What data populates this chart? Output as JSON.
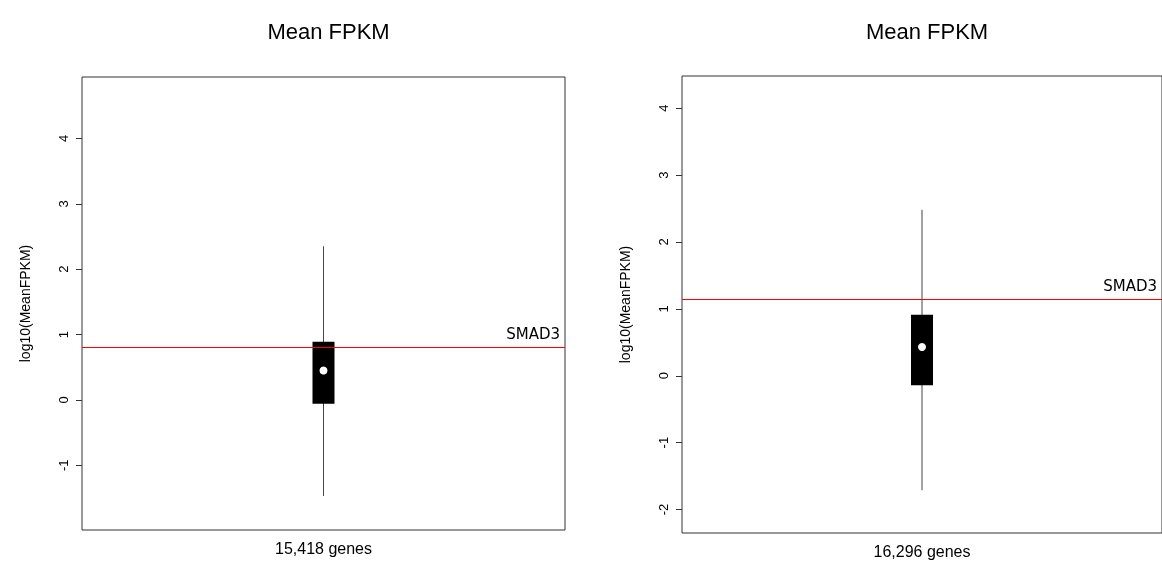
{
  "chart_data": [
    {
      "type": "box",
      "title": "Mean FPKM",
      "ylabel": "log10(MeanFPKM)",
      "categories": [
        "15,418 genes"
      ],
      "boxes": [
        {
          "low": -1.47,
          "q1": -0.06,
          "median": 0.45,
          "q3": 0.89,
          "high": 2.35
        }
      ],
      "color": "#000000",
      "ylim": [
        -1.99,
        4.94
      ],
      "yticks": [
        -1,
        0,
        1,
        2,
        3,
        4
      ],
      "grid": false,
      "ref_lines": [
        {
          "axis": "y",
          "value": 0.81,
          "label": "SMAD3",
          "color": "#ff0000"
        }
      ]
    },
    {
      "type": "box",
      "title": "Mean FPKM",
      "ylabel": "log10(MeanFPKM)",
      "categories": [
        "16,296 genes"
      ],
      "boxes": [
        {
          "low": -1.71,
          "q1": -0.14,
          "median": 0.43,
          "q3": 0.91,
          "high": 2.48
        }
      ],
      "color": "#000000",
      "ylim": [
        -2.35,
        4.48
      ],
      "yticks": [
        -2,
        -1,
        0,
        1,
        2,
        3,
        4
      ],
      "grid": false,
      "ref_lines": [
        {
          "axis": "y",
          "value": 1.15,
          "label": "SMAD3",
          "color": "#ff0000"
        }
      ]
    }
  ]
}
